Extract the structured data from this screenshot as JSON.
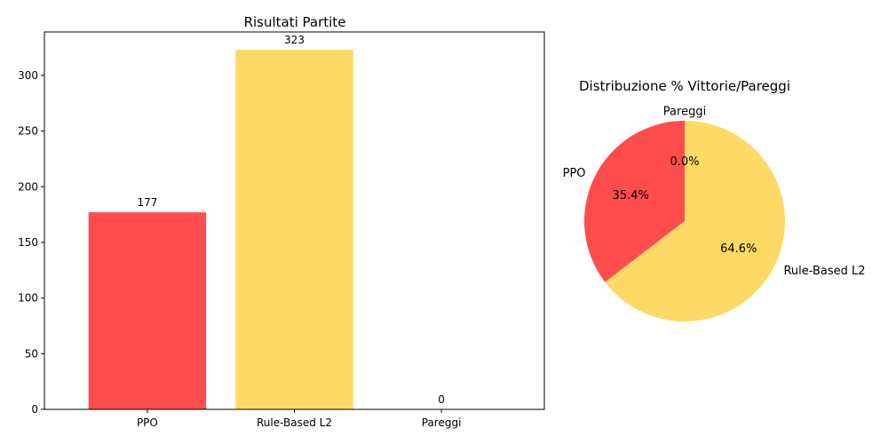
{
  "chart_data": [
    {
      "type": "bar",
      "title": "Risultati Partite",
      "categories": [
        "PPO",
        "Rule-Based L2",
        "Pareggi"
      ],
      "values": [
        177,
        323,
        0
      ],
      "value_labels": [
        "177",
        "323",
        "0"
      ],
      "colors": [
        "#ff4d4d",
        "#ffd966",
        "#cccccc"
      ],
      "xlabel": "",
      "ylabel": "",
      "ylim": [
        0,
        339
      ],
      "yticks": [
        0,
        50,
        100,
        150,
        200,
        250,
        300
      ],
      "grid": false
    },
    {
      "type": "pie",
      "title": "Distribuzione % Vittorie/Pareggi",
      "labels": [
        "PPO",
        "Rule-Based L2",
        "Pareggi"
      ],
      "values": [
        35.4,
        64.6,
        0.0
      ],
      "pct_labels": [
        "35.4%",
        "64.6%",
        "0.0%"
      ],
      "colors": [
        "#ff4d4d",
        "#ffd966",
        "#cccccc"
      ],
      "start_angle_deg": 90,
      "counterclockwise": true
    }
  ]
}
